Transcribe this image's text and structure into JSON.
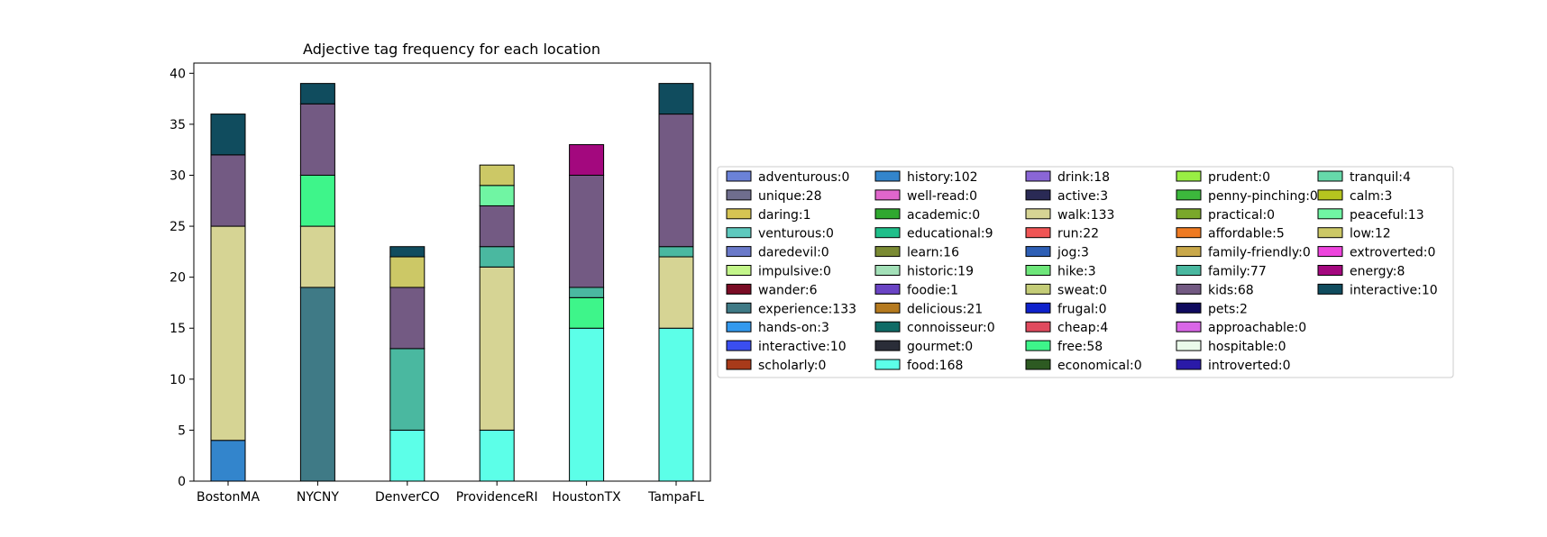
{
  "chart_data": {
    "type": "bar",
    "title": "Adjective tag frequency for each location",
    "xlabel": "",
    "ylabel": "",
    "ylim": [
      0,
      41
    ],
    "yticks": [
      0,
      5,
      10,
      15,
      20,
      25,
      30,
      35,
      40
    ],
    "categories": [
      "BostonMA",
      "NYCNY",
      "DenverCO",
      "ProvidenceRI",
      "HoustonTX",
      "TampaFL"
    ],
    "stacked": true,
    "grid": false,
    "legend_position": "right",
    "legend_columns": 5,
    "series": [
      {
        "name": "adventurous:0",
        "color": "#6b82d8",
        "values": [
          0,
          0,
          0,
          0,
          0,
          0
        ]
      },
      {
        "name": "unique:28",
        "color": "#6f6e8e",
        "values": [
          0,
          0,
          0,
          0,
          0,
          0
        ]
      },
      {
        "name": "daring:1",
        "color": "#d6c453",
        "values": [
          0,
          0,
          0,
          0,
          0,
          0
        ]
      },
      {
        "name": "venturous:0",
        "color": "#5ec9be",
        "values": [
          0,
          0,
          0,
          0,
          0,
          0
        ]
      },
      {
        "name": "daredevil:0",
        "color": "#6a79c9",
        "values": [
          0,
          0,
          0,
          0,
          0,
          0
        ]
      },
      {
        "name": "impulsive:0",
        "color": "#c3f58a",
        "values": [
          0,
          0,
          0,
          0,
          0,
          0
        ]
      },
      {
        "name": "wander:6",
        "color": "#7a0c25",
        "values": [
          0,
          0,
          0,
          0,
          0,
          0
        ]
      },
      {
        "name": "experience:133",
        "color": "#3f7a86",
        "values": [
          0,
          19,
          0,
          0,
          0,
          0
        ]
      },
      {
        "name": "hands-on:3",
        "color": "#3399ee",
        "values": [
          0,
          0,
          0,
          0,
          0,
          0
        ]
      },
      {
        "name": "interactive:10",
        "color": "#3a4ef0",
        "values": [
          0,
          0,
          0,
          0,
          0,
          0
        ]
      },
      {
        "name": "scholarly:0",
        "color": "#a83a1a",
        "values": [
          0,
          0,
          0,
          0,
          0,
          0
        ]
      },
      {
        "name": "history:102",
        "color": "#3385cc",
        "values": [
          4,
          0,
          0,
          0,
          0,
          0
        ]
      },
      {
        "name": "well-read:0",
        "color": "#e066cc",
        "values": [
          0,
          0,
          0,
          0,
          0,
          0
        ]
      },
      {
        "name": "academic:0",
        "color": "#2fa82f",
        "values": [
          0,
          0,
          0,
          0,
          0,
          0
        ]
      },
      {
        "name": "educational:9",
        "color": "#1fbf8a",
        "values": [
          0,
          0,
          0,
          0,
          0,
          0
        ]
      },
      {
        "name": "learn:16",
        "color": "#7a8a33",
        "values": [
          0,
          0,
          0,
          0,
          0,
          0
        ]
      },
      {
        "name": "historic:19",
        "color": "#a3e0b8",
        "values": [
          0,
          0,
          0,
          0,
          0,
          0
        ]
      },
      {
        "name": "foodie:1",
        "color": "#6a44c4",
        "values": [
          0,
          0,
          0,
          0,
          0,
          0
        ]
      },
      {
        "name": "delicious:21",
        "color": "#b57a1f",
        "values": [
          0,
          0,
          0,
          0,
          0,
          0
        ]
      },
      {
        "name": "connoisseur:0",
        "color": "#0f6b66",
        "values": [
          0,
          0,
          0,
          0,
          0,
          0
        ]
      },
      {
        "name": "gourmet:0",
        "color": "#2a2d38",
        "values": [
          0,
          0,
          0,
          0,
          0,
          0
        ]
      },
      {
        "name": "food:168",
        "color": "#5cffe8",
        "values": [
          0,
          0,
          5,
          5,
          15,
          15
        ]
      },
      {
        "name": "drink:18",
        "color": "#8a66d6",
        "values": [
          0,
          0,
          0,
          0,
          0,
          0
        ]
      },
      {
        "name": "active:3",
        "color": "#2a2a55",
        "values": [
          0,
          0,
          0,
          0,
          0,
          0
        ]
      },
      {
        "name": "walk:133",
        "color": "#d6d494",
        "values": [
          21,
          6,
          0,
          16,
          0,
          7
        ]
      },
      {
        "name": "run:22",
        "color": "#f05555",
        "values": [
          0,
          0,
          0,
          0,
          0,
          0
        ]
      },
      {
        "name": "jog:3",
        "color": "#2e5fb5",
        "values": [
          0,
          0,
          0,
          0,
          0,
          0
        ]
      },
      {
        "name": "hike:3",
        "color": "#6ee67a",
        "values": [
          0,
          0,
          0,
          0,
          0,
          0
        ]
      },
      {
        "name": "sweat:0",
        "color": "#c4cc77",
        "values": [
          0,
          0,
          0,
          0,
          0,
          0
        ]
      },
      {
        "name": "frugal:0",
        "color": "#0f22cc",
        "values": [
          0,
          0,
          0,
          0,
          0,
          0
        ]
      },
      {
        "name": "cheap:4",
        "color": "#e04a5e",
        "values": [
          0,
          0,
          0,
          0,
          0,
          0
        ]
      },
      {
        "name": "free:58",
        "color": "#3ef58a",
        "values": [
          0,
          5,
          0,
          0,
          3,
          0
        ]
      },
      {
        "name": "economical:0",
        "color": "#2d5a22",
        "values": [
          0,
          0,
          0,
          0,
          0,
          0
        ]
      },
      {
        "name": "prudent:0",
        "color": "#99ee44",
        "values": [
          0,
          0,
          0,
          0,
          0,
          0
        ]
      },
      {
        "name": "penny-pinching:0",
        "color": "#3cb83c",
        "values": [
          0,
          0,
          0,
          0,
          0,
          0
        ]
      },
      {
        "name": "practical:0",
        "color": "#7aa82a",
        "values": [
          0,
          0,
          0,
          0,
          0,
          0
        ]
      },
      {
        "name": "affordable:5",
        "color": "#ee7a22",
        "values": [
          0,
          0,
          0,
          0,
          0,
          0
        ]
      },
      {
        "name": "family-friendly:0",
        "color": "#c9a84a",
        "values": [
          0,
          0,
          0,
          0,
          0,
          0
        ]
      },
      {
        "name": "family:77",
        "color": "#4ab8a0",
        "values": [
          0,
          0,
          8,
          2,
          1,
          1
        ]
      },
      {
        "name": "kids:68",
        "color": "#735a83",
        "values": [
          7,
          7,
          6,
          4,
          11,
          13
        ]
      },
      {
        "name": "pets:2",
        "color": "#0f0a5e",
        "values": [
          0,
          0,
          0,
          0,
          0,
          0
        ]
      },
      {
        "name": "approachable:0",
        "color": "#d966e6",
        "values": [
          0,
          0,
          0,
          0,
          0,
          0
        ]
      },
      {
        "name": "hospitable:0",
        "color": "#eafaea",
        "values": [
          0,
          0,
          0,
          0,
          0,
          0
        ]
      },
      {
        "name": "introverted:0",
        "color": "#2a1aa8",
        "values": [
          0,
          0,
          0,
          0,
          0,
          0
        ]
      },
      {
        "name": "tranquil:4",
        "color": "#66d9aa",
        "values": [
          0,
          0,
          0,
          0,
          0,
          0
        ]
      },
      {
        "name": "calm:3",
        "color": "#b5c41f",
        "values": [
          0,
          0,
          0,
          0,
          0,
          0
        ]
      },
      {
        "name": "peaceful:13",
        "color": "#70f5a3",
        "values": [
          0,
          0,
          0,
          2,
          0,
          0
        ]
      },
      {
        "name": "low:12",
        "color": "#ccc866",
        "values": [
          0,
          0,
          3,
          2,
          0,
          0
        ]
      },
      {
        "name": "extroverted:0",
        "color": "#ee44dd",
        "values": [
          0,
          0,
          0,
          0,
          0,
          0
        ]
      },
      {
        "name": "energy:8",
        "color": "#a3087e",
        "values": [
          0,
          0,
          0,
          0,
          3,
          0
        ]
      },
      {
        "name": "interactive:10",
        "color": "#104c5e",
        "values": [
          4,
          2,
          1,
          0,
          0,
          3
        ]
      }
    ]
  }
}
